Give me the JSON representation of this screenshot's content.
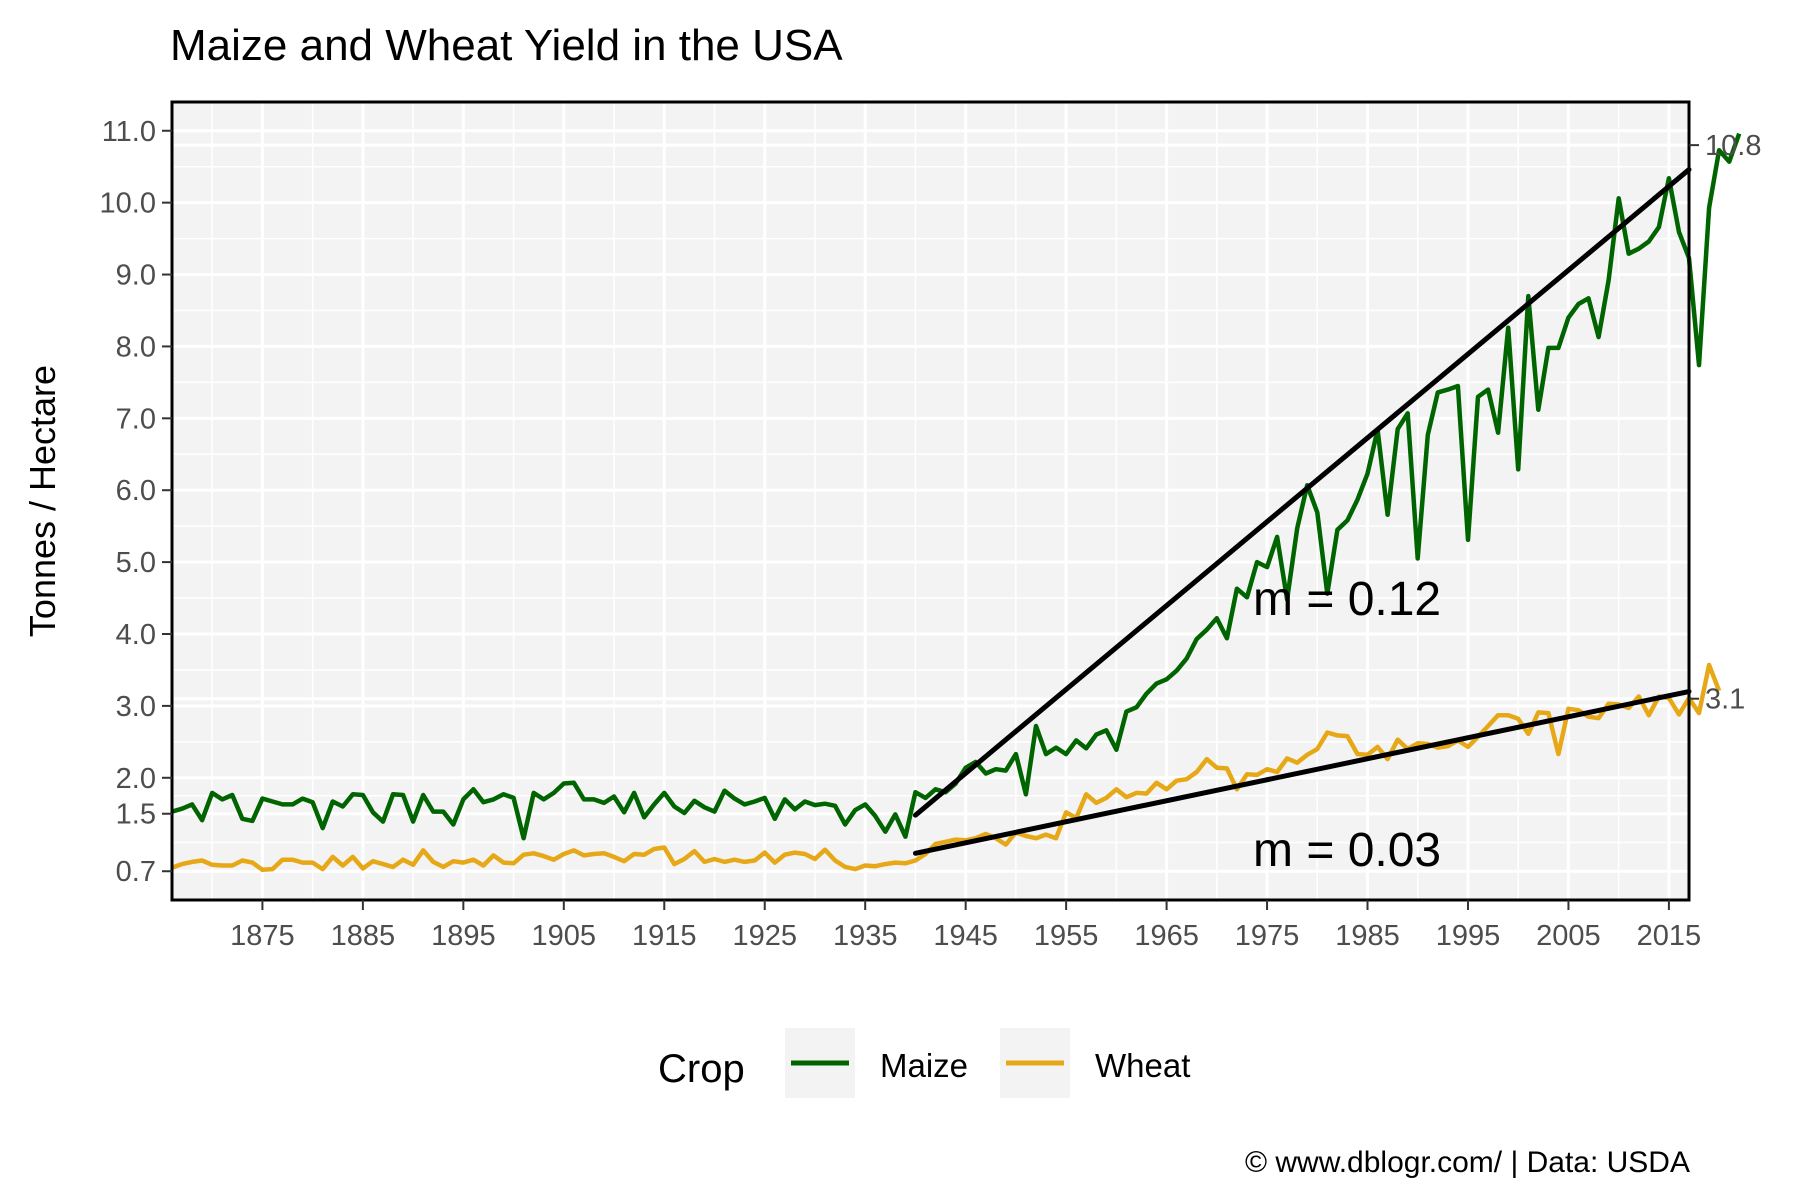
{
  "chart_data": {
    "type": "line",
    "title": "Maize and Wheat Yield in the USA",
    "xlabel": "",
    "ylabel": "Tonnes / Hectare",
    "xlim": [
      1866,
      2017
    ],
    "ylim": [
      0.3,
      11.4
    ],
    "x_ticks": [
      1875,
      1885,
      1895,
      1905,
      1915,
      1925,
      1935,
      1945,
      1955,
      1965,
      1975,
      1985,
      1995,
      2005,
      2015
    ],
    "x_tick_labels": [
      "1875",
      "1885",
      "1895",
      "1905",
      "1915",
      "1925",
      "1935",
      "1945",
      "1955",
      "1965",
      "1975",
      "1985",
      "1995",
      "2005",
      "2015"
    ],
    "y_ticks": [
      0.7,
      1.5,
      2.0,
      3.0,
      4.0,
      5.0,
      6.0,
      7.0,
      8.0,
      9.0,
      10.0,
      11.0
    ],
    "y_tick_labels": [
      "0.7",
      "1.5",
      "2.0",
      "3.0",
      "4.0",
      "5.0",
      "6.0",
      "7.0",
      "8.0",
      "9.0",
      "10.0",
      "11.0"
    ],
    "secondary_y_ticks": [
      10.8,
      3.1
    ],
    "secondary_y_tick_labels": [
      "10.8",
      "3.1"
    ],
    "grid": true,
    "legend": {
      "title": "Crop",
      "position": "bottom"
    },
    "series": [
      {
        "name": "Maize",
        "color": "#006400",
        "x_start": 1866,
        "values": [
          1.53,
          1.57,
          1.63,
          1.41,
          1.79,
          1.7,
          1.76,
          1.43,
          1.4,
          1.71,
          1.67,
          1.63,
          1.63,
          1.71,
          1.66,
          1.3,
          1.67,
          1.6,
          1.77,
          1.76,
          1.52,
          1.39,
          1.77,
          1.76,
          1.39,
          1.76,
          1.53,
          1.53,
          1.35,
          1.7,
          1.84,
          1.66,
          1.7,
          1.77,
          1.72,
          1.16,
          1.79,
          1.7,
          1.79,
          1.92,
          1.93,
          1.7,
          1.7,
          1.65,
          1.74,
          1.52,
          1.79,
          1.45,
          1.63,
          1.79,
          1.6,
          1.51,
          1.68,
          1.59,
          1.53,
          1.82,
          1.71,
          1.63,
          1.67,
          1.72,
          1.43,
          1.7,
          1.56,
          1.67,
          1.62,
          1.64,
          1.61,
          1.35,
          1.55,
          1.63,
          1.47,
          1.25,
          1.49,
          1.18,
          1.8,
          1.72,
          1.84,
          1.8,
          1.92,
          2.14,
          2.22,
          2.06,
          2.12,
          2.1,
          2.33,
          1.77,
          2.72,
          2.33,
          2.42,
          2.33,
          2.52,
          2.41,
          2.6,
          2.66,
          2.39,
          2.92,
          2.98,
          3.17,
          3.31,
          3.37,
          3.49,
          3.66,
          3.93,
          4.06,
          4.22,
          3.94,
          4.63,
          4.51,
          5.0,
          4.93,
          5.35,
          4.48,
          5.47,
          6.07,
          5.69,
          4.56,
          5.45,
          5.58,
          5.87,
          6.23,
          6.84,
          5.66,
          6.85,
          7.07,
          5.05,
          6.77,
          7.36,
          7.4,
          7.45,
          5.31,
          7.3,
          7.4,
          6.8,
          8.26,
          6.29,
          8.7,
          7.12,
          7.98,
          7.98,
          8.4,
          8.59,
          8.67,
          8.13,
          8.92,
          10.06,
          9.29,
          9.36,
          9.46,
          9.66,
          10.34,
          9.59,
          9.23,
          7.74,
          9.93,
          10.73,
          10.57,
          10.96
        ],
        "trend": {
          "label": "m = 0.12",
          "x": [
            1940,
            2017
          ],
          "y": [
            1.48,
            10.46
          ]
        }
      },
      {
        "name": "Wheat",
        "color": "#E6A817",
        "x_start": 1866,
        "values": [
          0.75,
          0.8,
          0.83,
          0.85,
          0.79,
          0.78,
          0.78,
          0.85,
          0.82,
          0.72,
          0.73,
          0.86,
          0.86,
          0.82,
          0.82,
          0.73,
          0.9,
          0.78,
          0.9,
          0.74,
          0.84,
          0.8,
          0.76,
          0.86,
          0.79,
          0.99,
          0.83,
          0.76,
          0.84,
          0.82,
          0.86,
          0.78,
          0.92,
          0.82,
          0.81,
          0.93,
          0.95,
          0.91,
          0.86,
          0.94,
          0.99,
          0.92,
          0.94,
          0.95,
          0.9,
          0.84,
          0.94,
          0.93,
          1.01,
          1.03,
          0.8,
          0.87,
          0.98,
          0.83,
          0.87,
          0.83,
          0.86,
          0.83,
          0.85,
          0.96,
          0.82,
          0.93,
          0.96,
          0.94,
          0.87,
          1.0,
          0.85,
          0.76,
          0.73,
          0.78,
          0.77,
          0.8,
          0.82,
          0.81,
          0.85,
          0.94,
          1.08,
          1.11,
          1.14,
          1.13,
          1.16,
          1.22,
          1.16,
          1.07,
          1.24,
          1.19,
          1.16,
          1.21,
          1.16,
          1.52,
          1.44,
          1.77,
          1.65,
          1.72,
          1.84,
          1.73,
          1.79,
          1.78,
          1.93,
          1.84,
          1.96,
          1.98,
          2.08,
          2.26,
          2.14,
          2.13,
          1.84,
          2.05,
          2.04,
          2.12,
          2.08,
          2.27,
          2.21,
          2.32,
          2.4,
          2.63,
          2.59,
          2.58,
          2.33,
          2.32,
          2.43,
          2.26,
          2.53,
          2.4,
          2.48,
          2.47,
          2.42,
          2.44,
          2.52,
          2.43,
          2.57,
          2.72,
          2.87,
          2.87,
          2.82,
          2.61,
          2.91,
          2.9,
          2.33,
          2.96,
          2.94,
          2.85,
          2.83,
          3.03,
          3.02,
          2.97,
          3.13,
          2.87,
          3.13,
          3.11,
          2.88,
          3.11,
          2.9,
          3.57,
          3.21
        ],
        "trend": {
          "label": "m = 0.03",
          "x": [
            1940,
            2017
          ],
          "y": [
            0.95,
            3.2
          ]
        }
      }
    ]
  },
  "footer": {
    "caption": "© www.dblogr.com/  |  Data: USDA"
  }
}
